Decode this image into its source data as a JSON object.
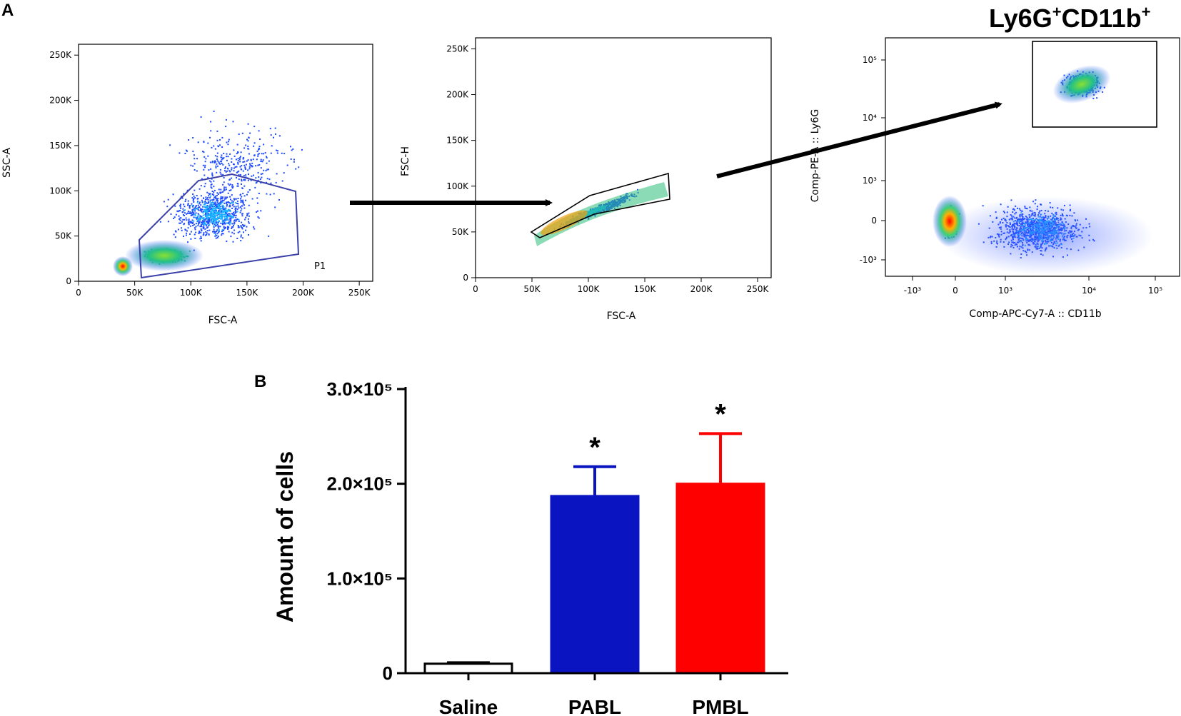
{
  "figure": {
    "panel_a": "A",
    "panel_b": "B",
    "population_title": "Ly6G",
    "population_title_sup1": "+",
    "population_title_mid": "CD11b",
    "population_title_sup2": "+"
  },
  "chart_data": [
    {
      "type": "scatter",
      "title": "",
      "xlabel": "FSC-A",
      "ylabel": "SSC-A",
      "xticks": [
        "0",
        "50K",
        "100K",
        "150K",
        "200K",
        "250K"
      ],
      "yticks": [
        "0",
        "50K",
        "100K",
        "150K",
        "200K",
        "250K"
      ],
      "xlim": [
        0,
        262000
      ],
      "ylim": [
        0,
        262000
      ],
      "gate": "P1",
      "note": "density plot of events; polygon gate P1"
    },
    {
      "type": "scatter",
      "title": "",
      "xlabel": "FSC-A",
      "ylabel": "FSC-H",
      "xticks": [
        "0",
        "50K",
        "100K",
        "150K",
        "200K",
        "250K"
      ],
      "yticks": [
        "0",
        "50K",
        "100K",
        "150K",
        "200K",
        "250K"
      ],
      "xlim": [
        0,
        262000
      ],
      "ylim": [
        0,
        262000
      ],
      "note": "singlet gate on FSC-A vs FSC-H"
    },
    {
      "type": "scatter",
      "title": "Ly6G+CD11b+",
      "xlabel": "Comp-APC-Cy7-A :: CD11b",
      "ylabel": "Comp-PE-A :: Ly6G",
      "xticks": [
        "-10³",
        "0",
        "10³",
        "10⁴",
        "10⁵"
      ],
      "yticks": [
        "-10³",
        "0",
        "10³",
        "10⁴",
        "10⁵"
      ],
      "note": "log-scaled, rectangular gate on Ly6G+CD11b+ population"
    },
    {
      "type": "bar",
      "title": "",
      "xlabel": "",
      "ylabel": "Amount of cells",
      "categories": [
        "Saline",
        "PABL",
        "PMBL"
      ],
      "values": [
        10000,
        187000,
        200000
      ],
      "errors": [
        1000,
        31000,
        53000
      ],
      "significance": [
        "",
        "*",
        "*"
      ],
      "colors": [
        "#ffffff",
        "#0a14c0",
        "#ff0000"
      ],
      "ylim": [
        0,
        300000
      ],
      "yticks": [
        {
          "value": 0,
          "label": "0"
        },
        {
          "value": 100000,
          "label": "1.0×10⁵"
        },
        {
          "value": 200000,
          "label": "2.0×10⁵"
        },
        {
          "value": 300000,
          "label": "3.0×10⁵"
        }
      ]
    }
  ]
}
